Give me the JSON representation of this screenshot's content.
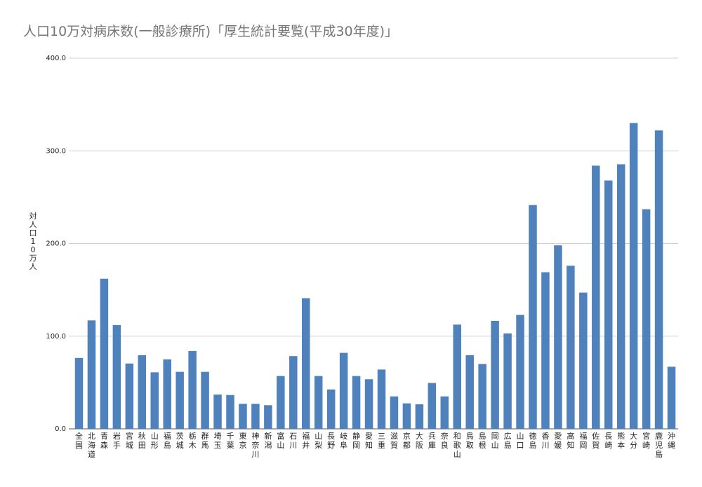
{
  "chart_data": {
    "type": "bar",
    "title": "人口10万対病床数(一般診療所)「厚生統計要覧(平成30年度)」",
    "ylabel": "対人口10万人",
    "ylim": [
      0,
      400
    ],
    "yticks": [
      "0.0",
      "100.0",
      "200.0",
      "300.0",
      "400.0"
    ],
    "grid": true,
    "legend": "none",
    "bar_color": "#4f81bd",
    "categories": [
      "全国",
      "北海道",
      "青森",
      "岩手",
      "宮城",
      "秋田",
      "山形",
      "福島",
      "茨城",
      "栃木",
      "群馬",
      "埼玉",
      "千葉",
      "東京",
      "神奈川",
      "新潟",
      "富山",
      "石川",
      "福井",
      "山梨",
      "長野",
      "岐阜",
      "静岡",
      "愛知",
      "三重",
      "滋賀",
      "京都",
      "大阪",
      "兵庫",
      "奈良",
      "和歌山",
      "鳥取",
      "島根",
      "岡山",
      "広島",
      "山口",
      "徳島",
      "香川",
      "愛媛",
      "高知",
      "福岡",
      "佐賀",
      "長崎",
      "熊本",
      "大分",
      "宮崎",
      "鹿児島",
      "沖縄"
    ],
    "values": [
      76.5,
      117,
      162,
      112,
      70.5,
      79.5,
      61,
      75,
      61.5,
      84,
      61.5,
      37,
      36.5,
      27,
      27,
      25.5,
      57,
      78.5,
      141,
      57,
      42.5,
      82,
      57,
      53.5,
      64,
      35,
      27.5,
      26.5,
      49.5,
      35,
      112.5,
      79.5,
      70,
      116.5,
      103,
      123,
      241.5,
      169,
      198,
      176,
      147,
      284,
      268,
      285.5,
      330,
      237,
      322,
      67
    ]
  }
}
